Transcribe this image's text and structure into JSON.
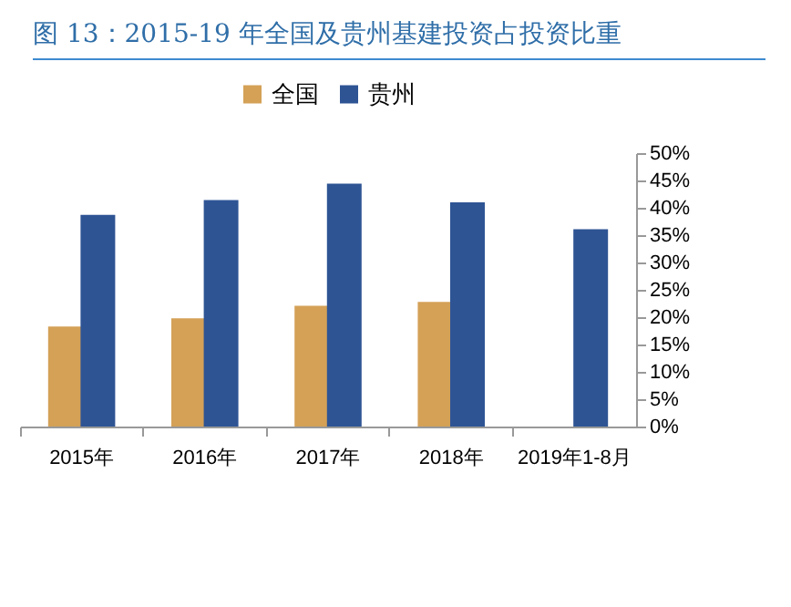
{
  "chart_data": {
    "type": "bar",
    "title": "图 13：2015-19 年全国及贵州基建投资占投资比重",
    "categories": [
      "2015年",
      "2016年",
      "2017年",
      "2018年",
      "2019年1-8月"
    ],
    "series": [
      {
        "name": "全国",
        "color": "#d4a157",
        "values": [
          18.3,
          19.8,
          22.1,
          22.8,
          null
        ]
      },
      {
        "name": "贵州",
        "color": "#2e5494",
        "values": [
          38.7,
          41.4,
          44.4,
          41.0,
          36.1
        ]
      }
    ],
    "ylim": [
      0,
      50
    ],
    "yticks": [
      {
        "value": 0,
        "label": "0%"
      },
      {
        "value": 5,
        "label": "5%"
      },
      {
        "value": 10,
        "label": "10%"
      },
      {
        "value": 15,
        "label": "15%"
      },
      {
        "value": 20,
        "label": "20%"
      },
      {
        "value": 25,
        "label": "25%"
      },
      {
        "value": 30,
        "label": "30%"
      },
      {
        "value": 35,
        "label": "35%"
      },
      {
        "value": 40,
        "label": "40%"
      },
      {
        "value": 45,
        "label": "45%"
      },
      {
        "value": 50,
        "label": "50%"
      }
    ],
    "grid": false,
    "legend": "top"
  }
}
